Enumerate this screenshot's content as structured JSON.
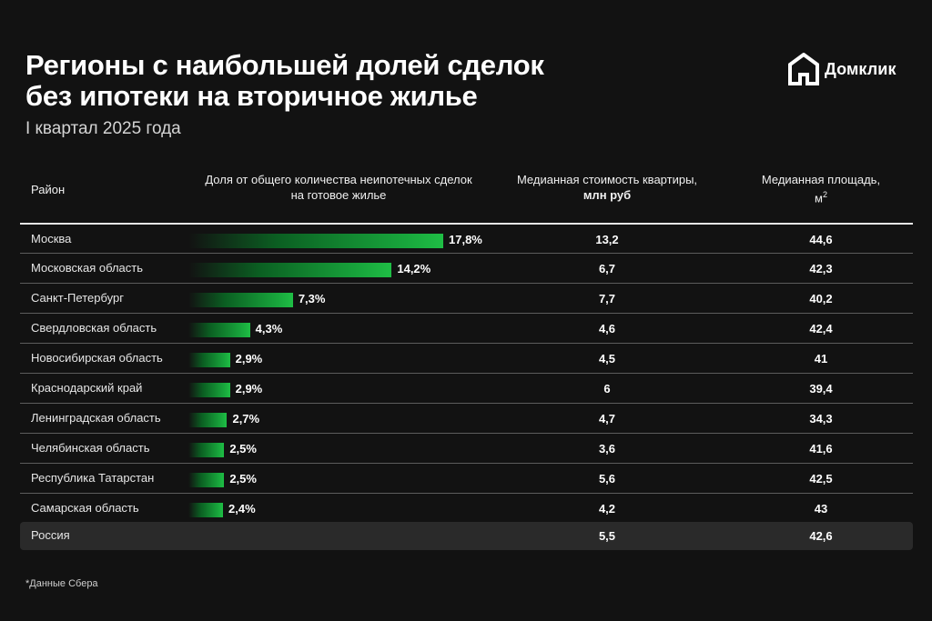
{
  "title_line1": "Регионы с наибольшей долей сделок",
  "title_line2": "без ипотеки на вторичное жилье",
  "subtitle": "I квартал 2025 года",
  "brand": "Домклик",
  "headers": {
    "region": "Район",
    "share_line1": "Доля от общего количества неипотечных сделок",
    "share_line2": "на готовое жилье",
    "price_line1": "Медианная стоимость квартиры,",
    "price_line2": "млн руб",
    "area_line1": "Медианная площадь,",
    "area_unit": "м",
    "area_sup": "2"
  },
  "total_row": {
    "region": "Россия",
    "price": "5,5",
    "area": "42,6"
  },
  "footnote": "*Данные Сбера",
  "colors": {
    "bar_end": "#1fbe45",
    "background": "#121212"
  },
  "chart_data": {
    "type": "table",
    "title": "Регионы с наибольшей долей сделок без ипотеки на вторичное жилье",
    "subtitle": "I квартал 2025 года",
    "columns": [
      "Район",
      "Доля от общего количества неипотечных сделок на готовое жилье",
      "Медианная стоимость квартиры, млн руб",
      "Медианная площадь, м2"
    ],
    "share_max": 17.8,
    "rows": [
      {
        "region": "Москва",
        "share": 17.8,
        "share_label": "17,8%",
        "price": "13,2",
        "area": "44,6"
      },
      {
        "region": "Московская область",
        "share": 14.2,
        "share_label": "14,2%",
        "price": "6,7",
        "area": "42,3"
      },
      {
        "region": "Санкт-Петербург",
        "share": 7.3,
        "share_label": "7,3%",
        "price": "7,7",
        "area": "40,2"
      },
      {
        "region": "Свердловская область",
        "share": 4.3,
        "share_label": "4,3%",
        "price": "4,6",
        "area": "42,4"
      },
      {
        "region": "Новосибирская область",
        "share": 2.9,
        "share_label": "2,9%",
        "price": "4,5",
        "area": "41"
      },
      {
        "region": "Краснодарский край",
        "share": 2.9,
        "share_label": "2,9%",
        "price": "6",
        "area": "39,4"
      },
      {
        "region": "Ленинградская область",
        "share": 2.7,
        "share_label": "2,7%",
        "price": "4,7",
        "area": "34,3"
      },
      {
        "region": "Челябинская область",
        "share": 2.5,
        "share_label": "2,5%",
        "price": "3,6",
        "area": "41,6"
      },
      {
        "region": "Республика Татарстан",
        "share": 2.5,
        "share_label": "2,5%",
        "price": "5,6",
        "area": "42,5"
      },
      {
        "region": "Самарская область",
        "share": 2.4,
        "share_label": "2,4%",
        "price": "4,2",
        "area": "43"
      }
    ]
  }
}
